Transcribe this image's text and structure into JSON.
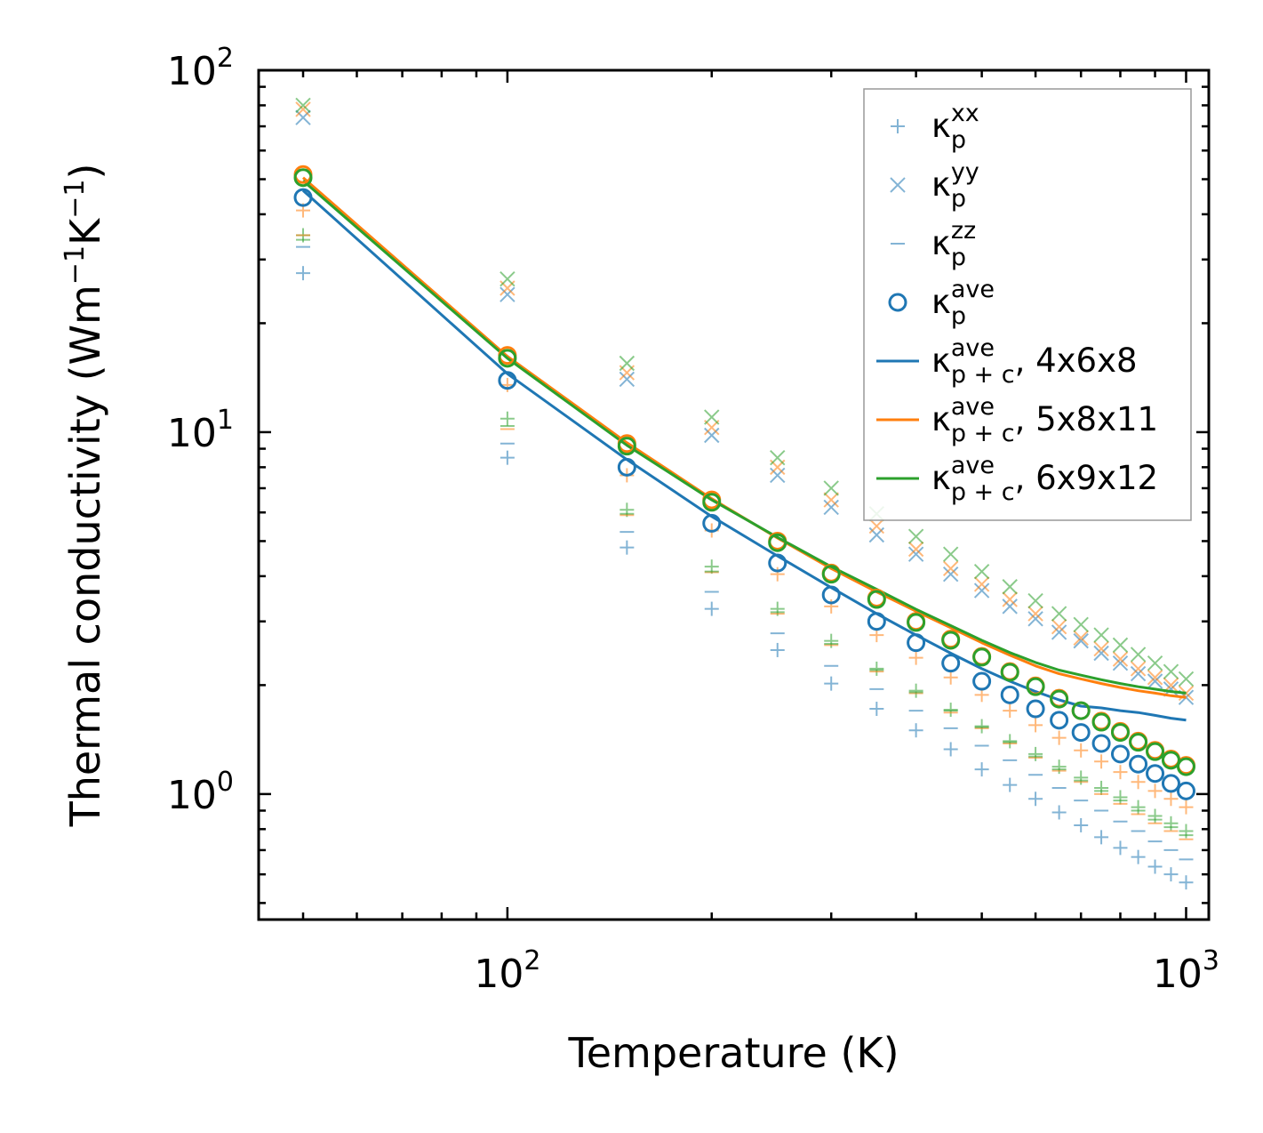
{
  "chart_data": {
    "type": "scatter",
    "xlabel": "Temperature (K)",
    "ylabel": "Thermal conductivity (Wm",
    "ylabel_exp1": "−1",
    "ylabel_mid": "K",
    "ylabel_exp2": "−1",
    "ylabel_end": ")",
    "xscale": "log",
    "yscale": "log",
    "xlim": [
      43,
      1080
    ],
    "ylim": [
      0.45,
      100
    ],
    "xticks": [
      {
        "value": 100,
        "base": "10",
        "exp": "2"
      },
      {
        "value": 1000,
        "base": "10",
        "exp": "3"
      }
    ],
    "yticks": [
      {
        "value": 1,
        "base": "10",
        "exp": "0"
      },
      {
        "value": 10,
        "base": "10",
        "exp": "1"
      },
      {
        "value": 100,
        "base": "10",
        "exp": "2"
      }
    ],
    "legend_position": "upper right",
    "x": [
      50,
      100,
      150,
      200,
      250,
      300,
      350,
      400,
      450,
      500,
      550,
      600,
      650,
      700,
      750,
      800,
      850,
      900,
      950,
      1000
    ],
    "colors": {
      "blue": "#1f77b4",
      "orange": "#ff7f0e",
      "green": "#2ca02c"
    },
    "legend": [
      {
        "marker": "plus",
        "color": "#1f77b4",
        "base": "κ",
        "sub": "p",
        "sup": "xx",
        "suffix": ""
      },
      {
        "marker": "x",
        "color": "#1f77b4",
        "base": "κ",
        "sub": "p",
        "sup": "yy",
        "suffix": ""
      },
      {
        "marker": "hline",
        "color": "#1f77b4",
        "base": "κ",
        "sub": "p",
        "sup": "zz",
        "suffix": ""
      },
      {
        "marker": "circle",
        "color": "#1f77b4",
        "base": "κ",
        "sub": "p",
        "sup": "ave",
        "suffix": ""
      },
      {
        "marker": "line",
        "color": "#1f77b4",
        "base": "κ",
        "sub": "p + c",
        "sup": "ave",
        "suffix": ", 4x6x8"
      },
      {
        "marker": "line",
        "color": "#ff7f0e",
        "base": "κ",
        "sub": "p + c",
        "sup": "ave",
        "suffix": ", 5x8x11"
      },
      {
        "marker": "line",
        "color": "#2ca02c",
        "base": "κ",
        "sub": "p + c",
        "sup": "ave",
        "suffix": ", 6x9x12"
      }
    ],
    "series": [
      {
        "name": "κp_xx 4x6x8",
        "marker": "plus",
        "color": "#1f77b4",
        "alpha": 0.55,
        "values": [
          27.5,
          8.5,
          4.8,
          3.25,
          2.5,
          2.02,
          1.72,
          1.5,
          1.33,
          1.17,
          1.06,
          0.97,
          0.89,
          0.82,
          0.76,
          0.71,
          0.67,
          0.63,
          0.6,
          0.57
        ]
      },
      {
        "name": "κp_yy 4x6x8",
        "marker": "x",
        "color": "#1f77b4",
        "alpha": 0.55,
        "values": [
          74,
          24,
          14,
          9.8,
          7.6,
          6.2,
          5.2,
          4.6,
          4.05,
          3.65,
          3.3,
          3.05,
          2.8,
          2.65,
          2.45,
          2.3,
          2.15,
          2.05,
          1.95,
          1.85
        ]
      },
      {
        "name": "κp_zz 4x6x8",
        "marker": "hline",
        "color": "#1f77b4",
        "alpha": 0.55,
        "values": [
          32.5,
          9.3,
          5.3,
          3.62,
          2.78,
          2.26,
          1.95,
          1.7,
          1.52,
          1.36,
          1.24,
          1.13,
          1.04,
          0.96,
          0.9,
          0.84,
          0.79,
          0.74,
          0.7,
          0.66
        ]
      },
      {
        "name": "κp_ave 4x6x8",
        "marker": "circle",
        "color": "#1f77b4",
        "alpha": 1,
        "values": [
          44.5,
          13.9,
          8.0,
          5.6,
          4.35,
          3.55,
          3.0,
          2.62,
          2.3,
          2.05,
          1.88,
          1.72,
          1.6,
          1.48,
          1.38,
          1.29,
          1.21,
          1.14,
          1.07,
          1.02
        ]
      },
      {
        "name": "κp_xx 5x8x11",
        "marker": "plus",
        "color": "#ff7f0e",
        "alpha": 0.55,
        "values": [
          41,
          13.5,
          7.6,
          5.35,
          4.05,
          3.3,
          2.75,
          2.38,
          2.1,
          1.88,
          1.7,
          1.55,
          1.43,
          1.32,
          1.23,
          1.15,
          1.08,
          1.02,
          0.97,
          0.92
        ]
      },
      {
        "name": "κp_yy 5x8x11",
        "marker": "x",
        "color": "#ff7f0e",
        "alpha": 0.55,
        "values": [
          78,
          25,
          14.6,
          10.3,
          8.0,
          6.5,
          5.5,
          4.75,
          4.2,
          3.8,
          3.45,
          3.15,
          2.9,
          2.7,
          2.52,
          2.36,
          2.22,
          2.1,
          2.0,
          1.9
        ]
      },
      {
        "name": "κp_zz 5x8x11",
        "marker": "hline",
        "color": "#ff7f0e",
        "alpha": 0.55,
        "values": [
          35,
          10.2,
          5.9,
          4.1,
          3.15,
          2.58,
          2.18,
          1.9,
          1.68,
          1.52,
          1.38,
          1.26,
          1.16,
          1.08,
          1.0,
          0.94,
          0.88,
          0.83,
          0.79,
          0.75
        ]
      },
      {
        "name": "κp_ave 5x8x11",
        "marker": "circle",
        "color": "#ff7f0e",
        "alpha": 1,
        "values": [
          51.5,
          16.3,
          9.3,
          6.5,
          5.0,
          4.08,
          3.48,
          3.0,
          2.68,
          2.4,
          2.18,
          1.99,
          1.84,
          1.7,
          1.59,
          1.49,
          1.4,
          1.32,
          1.25,
          1.2
        ]
      },
      {
        "name": "κp_xx 6x9x12",
        "marker": "plus",
        "color": "#2ca02c",
        "alpha": 0.55,
        "values": [
          35,
          10.9,
          6.1,
          4.25,
          3.25,
          2.65,
          2.22,
          1.93,
          1.71,
          1.54,
          1.4,
          1.29,
          1.19,
          1.11,
          1.04,
          0.98,
          0.92,
          0.87,
          0.83,
          0.79
        ]
      },
      {
        "name": "κp_yy 6x9x12",
        "marker": "x",
        "color": "#2ca02c",
        "alpha": 0.55,
        "values": [
          80,
          26.5,
          15.5,
          11.0,
          8.5,
          7.0,
          5.95,
          5.15,
          4.6,
          4.12,
          3.74,
          3.42,
          3.15,
          2.94,
          2.75,
          2.58,
          2.43,
          2.3,
          2.18,
          2.08
        ]
      },
      {
        "name": "κp_zz 6x9x12",
        "marker": "hline",
        "color": "#2ca02c",
        "alpha": 0.55,
        "values": [
          34,
          10.4,
          5.95,
          4.12,
          3.18,
          2.6,
          2.2,
          1.91,
          1.7,
          1.53,
          1.39,
          1.27,
          1.17,
          1.09,
          1.02,
          0.96,
          0.9,
          0.85,
          0.81,
          0.77
        ]
      },
      {
        "name": "κp_ave 6x9x12",
        "marker": "circle",
        "color": "#2ca02c",
        "alpha": 1,
        "values": [
          50.5,
          16.0,
          9.15,
          6.4,
          4.95,
          4.05,
          3.45,
          2.98,
          2.66,
          2.39,
          2.17,
          1.98,
          1.83,
          1.7,
          1.58,
          1.48,
          1.39,
          1.31,
          1.24,
          1.19
        ]
      },
      {
        "name": "κp+c_ave 4x6x8",
        "marker": "line",
        "color": "#1f77b4",
        "alpha": 1,
        "values": [
          46.5,
          14.5,
          8.4,
          5.85,
          4.55,
          3.72,
          3.15,
          2.75,
          2.45,
          2.22,
          2.05,
          1.92,
          1.82,
          1.75,
          1.73,
          1.7,
          1.68,
          1.65,
          1.62,
          1.6
        ]
      },
      {
        "name": "κp+c_ave 5x8x11",
        "marker": "line",
        "color": "#ff7f0e",
        "alpha": 1,
        "values": [
          50.5,
          16.2,
          9.35,
          6.55,
          5.1,
          4.2,
          3.62,
          3.2,
          2.88,
          2.62,
          2.42,
          2.26,
          2.15,
          2.08,
          2.02,
          1.97,
          1.93,
          1.9,
          1.87,
          1.85
        ]
      },
      {
        "name": "κp+c_ave 6x9x12",
        "marker": "line",
        "color": "#2ca02c",
        "alpha": 1,
        "values": [
          49.5,
          16.0,
          9.2,
          6.5,
          5.12,
          4.25,
          3.68,
          3.24,
          2.92,
          2.66,
          2.46,
          2.31,
          2.2,
          2.13,
          2.07,
          2.02,
          1.98,
          1.95,
          1.92,
          1.9
        ]
      }
    ]
  }
}
